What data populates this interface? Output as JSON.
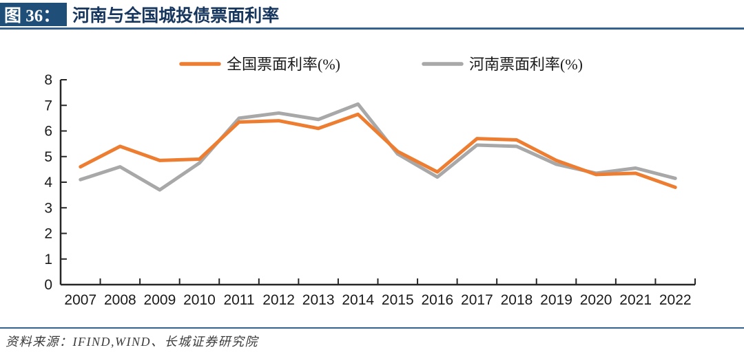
{
  "header": {
    "figure_label": "图 36：",
    "title": "河南与全国城投债票面利率"
  },
  "footer": {
    "source": "资料来源：IFIND,WIND、长城证券研究院"
  },
  "colors": {
    "header_badge_blue": "#1F4E79",
    "title_blue": "#17365D",
    "rule_blue": "#35618F",
    "axis": "#262626",
    "axis_label": "#1A1A1A",
    "legend_text": "#1A1A1A",
    "source_text": "#3B3B3B",
    "national_orange": "#ED7D31",
    "henan_gray": "#A8A8A8"
  },
  "chart_data": {
    "type": "line",
    "title": "河南与全国城投债票面利率",
    "xlabel": "",
    "ylabel": "",
    "categories": [
      "2007",
      "2008",
      "2009",
      "2010",
      "2011",
      "2012",
      "2013",
      "2014",
      "2015",
      "2016",
      "2017",
      "2018",
      "2019",
      "2020",
      "2021",
      "2022"
    ],
    "series": [
      {
        "name": "全国票面利率(%)",
        "color": "#ED7D31",
        "values": [
          4.6,
          5.4,
          4.85,
          4.9,
          6.35,
          6.4,
          6.1,
          6.65,
          5.2,
          4.4,
          5.7,
          5.65,
          4.85,
          4.3,
          4.35,
          3.8
        ]
      },
      {
        "name": "河南票面利率(%)",
        "color": "#A8A8A8",
        "values": [
          4.1,
          4.6,
          3.7,
          4.75,
          6.5,
          6.7,
          6.45,
          7.05,
          5.1,
          4.2,
          5.45,
          5.4,
          4.7,
          4.35,
          4.55,
          4.15
        ]
      }
    ],
    "ylim": [
      0,
      8
    ],
    "ytick_step": 1,
    "grid": false,
    "legend_position": "top",
    "line_width": 5
  }
}
